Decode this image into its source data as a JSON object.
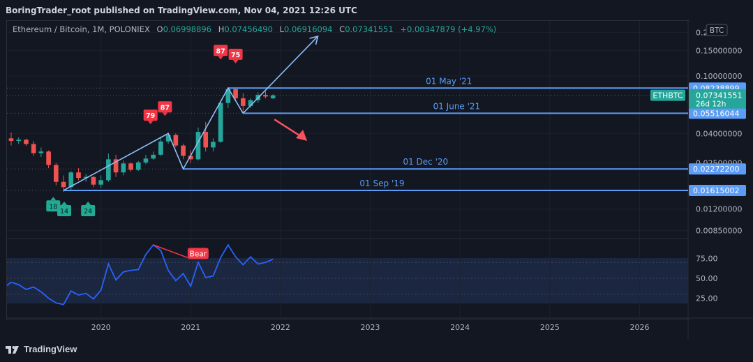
{
  "header": {
    "publisher_line": "BoringTrader_root published on TradingView.com, Nov 04, 2021 12:26 UTC"
  },
  "legend": {
    "symbol": "Ethereum / Bitcoin, 1M, POLONIEX",
    "o_label": "O",
    "o_value": "0.06998896",
    "h_label": "H",
    "h_value": "0.07456490",
    "l_label": "L",
    "l_value": "0.06916094",
    "c_label": "C",
    "c_value": "0.07341551",
    "change": "+0.00347879 (+4.97%)"
  },
  "currency_badge": "BTC",
  "footer": {
    "brand": "TradingView"
  },
  "colors": {
    "background": "#131722",
    "up": "#26a69a",
    "down": "#ef5350",
    "up_bright": "#22ab94",
    "line_blue": "#5b9cf6",
    "rsi_line": "#2962ff",
    "bear": "#f23645",
    "text": "#b2b5be"
  },
  "chart_data": [
    {
      "type": "candlestick",
      "symbol": "ETHBTC",
      "scale": "log",
      "ylim": [
        0.0075,
        0.24
      ],
      "y_ticks": [
        "0.2",
        "0.15000000",
        "0.10000000",
        "0.04000000",
        "0.02500000",
        "0.01200000",
        "0.00850000"
      ],
      "x_ticks": [
        "2020",
        "2021",
        "2022",
        "2023",
        "2024",
        "2025",
        "2026"
      ],
      "series": [
        {
          "date": "2019-01",
          "o": 0.037,
          "h": 0.0405,
          "l": 0.033,
          "c": 0.0355
        },
        {
          "date": "2019-02",
          "o": 0.0355,
          "h": 0.0375,
          "l": 0.0338,
          "c": 0.0362
        },
        {
          "date": "2019-03",
          "o": 0.0362,
          "h": 0.0368,
          "l": 0.0328,
          "c": 0.0338
        },
        {
          "date": "2019-04",
          "o": 0.0338,
          "h": 0.0355,
          "l": 0.028,
          "c": 0.0292
        },
        {
          "date": "2019-05",
          "o": 0.0292,
          "h": 0.032,
          "l": 0.0275,
          "c": 0.03
        },
        {
          "date": "2019-06",
          "o": 0.03,
          "h": 0.0305,
          "l": 0.023,
          "c": 0.0242
        },
        {
          "date": "2019-07",
          "o": 0.0242,
          "h": 0.025,
          "l": 0.0175,
          "c": 0.0185
        },
        {
          "date": "2019-08",
          "o": 0.0185,
          "h": 0.0205,
          "l": 0.0158,
          "c": 0.017
        },
        {
          "date": "2019-09",
          "o": 0.017,
          "h": 0.022,
          "l": 0.0162,
          "c": 0.0215
        },
        {
          "date": "2019-10",
          "o": 0.0215,
          "h": 0.023,
          "l": 0.019,
          "c": 0.0197
        },
        {
          "date": "2019-11",
          "o": 0.0197,
          "h": 0.021,
          "l": 0.0185,
          "c": 0.02
        },
        {
          "date": "2019-12",
          "o": 0.02,
          "h": 0.0203,
          "l": 0.017,
          "c": 0.0177
        },
        {
          "date": "2020-01",
          "o": 0.0177,
          "h": 0.0205,
          "l": 0.0168,
          "c": 0.019
        },
        {
          "date": "2020-02",
          "o": 0.019,
          "h": 0.029,
          "l": 0.0185,
          "c": 0.0265
        },
        {
          "date": "2020-03",
          "o": 0.0265,
          "h": 0.0285,
          "l": 0.02,
          "c": 0.0215
        },
        {
          "date": "2020-04",
          "o": 0.0215,
          "h": 0.026,
          "l": 0.0205,
          "c": 0.0248
        },
        {
          "date": "2020-05",
          "o": 0.0248,
          "h": 0.0252,
          "l": 0.0218,
          "c": 0.0224
        },
        {
          "date": "2020-06",
          "o": 0.0224,
          "h": 0.0258,
          "l": 0.022,
          "c": 0.0252
        },
        {
          "date": "2020-07",
          "o": 0.0252,
          "h": 0.0285,
          "l": 0.0245,
          "c": 0.0268
        },
        {
          "date": "2020-08",
          "o": 0.0268,
          "h": 0.03,
          "l": 0.0262,
          "c": 0.0285
        },
        {
          "date": "2020-09",
          "o": 0.0285,
          "h": 0.038,
          "l": 0.028,
          "c": 0.0352
        },
        {
          "date": "2020-10",
          "o": 0.0352,
          "h": 0.04,
          "l": 0.034,
          "c": 0.039
        },
        {
          "date": "2020-11",
          "o": 0.039,
          "h": 0.04,
          "l": 0.032,
          "c": 0.033
        },
        {
          "date": "2020-12",
          "o": 0.033,
          "h": 0.034,
          "l": 0.0265,
          "c": 0.028
        },
        {
          "date": "2021-01",
          "o": 0.028,
          "h": 0.0305,
          "l": 0.025,
          "c": 0.0265
        },
        {
          "date": "2021-02",
          "o": 0.0265,
          "h": 0.044,
          "l": 0.026,
          "c": 0.041
        },
        {
          "date": "2021-03",
          "o": 0.041,
          "h": 0.048,
          "l": 0.03,
          "c": 0.032
        },
        {
          "date": "2021-04",
          "o": 0.032,
          "h": 0.037,
          "l": 0.03,
          "c": 0.035
        },
        {
          "date": "2021-05",
          "o": 0.035,
          "h": 0.067,
          "l": 0.0345,
          "c": 0.065
        },
        {
          "date": "2021-06",
          "o": 0.065,
          "h": 0.0825,
          "l": 0.06,
          "c": 0.081
        },
        {
          "date": "2021-07",
          "o": 0.081,
          "h": 0.083,
          "l": 0.068,
          "c": 0.07
        },
        {
          "date": "2021-08",
          "o": 0.07,
          "h": 0.076,
          "l": 0.0552,
          "c": 0.062
        },
        {
          "date": "2021-09",
          "o": 0.062,
          "h": 0.07,
          "l": 0.06,
          "c": 0.068
        },
        {
          "date": "2021-10",
          "o": 0.068,
          "h": 0.077,
          "l": 0.065,
          "c": 0.074
        },
        {
          "date": "2021-11",
          "o": 0.074,
          "h": 0.078,
          "l": 0.07,
          "c": 0.072
        },
        {
          "date": "2021-12",
          "o": 0.07,
          "h": 0.0746,
          "l": 0.0692,
          "c": 0.0734
        }
      ],
      "levels": [
        {
          "label": "01 May '21",
          "price": "0.08238899",
          "value": 0.08238899
        },
        {
          "label": "01 June '21",
          "price": "0.05516044",
          "value": 0.05516044
        },
        {
          "label": "01 Dec '20",
          "price": "0.02272200",
          "value": 0.022722
        },
        {
          "label": "01 Sep '19",
          "price": "0.01615002",
          "value": 0.01615002
        }
      ],
      "current": {
        "symbol": "ETHBTC",
        "price": "0.07341551",
        "countdown": "26d 12h",
        "value": 0.07341551
      },
      "markers_bear": [
        {
          "label": "79",
          "date": "2020-08"
        },
        {
          "label": "87",
          "date": "2020-09"
        },
        {
          "label": "87",
          "date": "2021-05"
        },
        {
          "label": "75",
          "date": "2021-07"
        }
      ],
      "markers_bull": [
        {
          "label": "18",
          "date": "2019-07"
        },
        {
          "label": "14",
          "date": "2019-08"
        },
        {
          "label": "24",
          "date": "2019-11"
        }
      ]
    },
    {
      "type": "line",
      "indicator": "RSI",
      "ylim": [
        0,
        100
      ],
      "y_ticks": [
        "75.00",
        "50.00",
        "25.00"
      ],
      "bands": [
        30,
        70
      ],
      "divergence_label": "Bear",
      "x": [
        "2019-01",
        "2019-02",
        "2019-03",
        "2019-04",
        "2019-05",
        "2019-06",
        "2019-07",
        "2019-08",
        "2019-09",
        "2019-10",
        "2019-11",
        "2019-12",
        "2020-01",
        "2020-02",
        "2020-03",
        "2020-04",
        "2020-05",
        "2020-06",
        "2020-07",
        "2020-08",
        "2020-09",
        "2020-10",
        "2020-11",
        "2020-12",
        "2021-01",
        "2021-02",
        "2021-03",
        "2021-04",
        "2021-05",
        "2021-06",
        "2021-07",
        "2021-08",
        "2021-09",
        "2021-10",
        "2021-11",
        "2021-12"
      ],
      "values": [
        45,
        42,
        36,
        39,
        33,
        25,
        19,
        17,
        34,
        29,
        31,
        24,
        35,
        68,
        48,
        58,
        60,
        61,
        80,
        92,
        85,
        60,
        47,
        56,
        40,
        70,
        51,
        53,
        76,
        92,
        77,
        67,
        77,
        68,
        70,
        74
      ]
    }
  ]
}
